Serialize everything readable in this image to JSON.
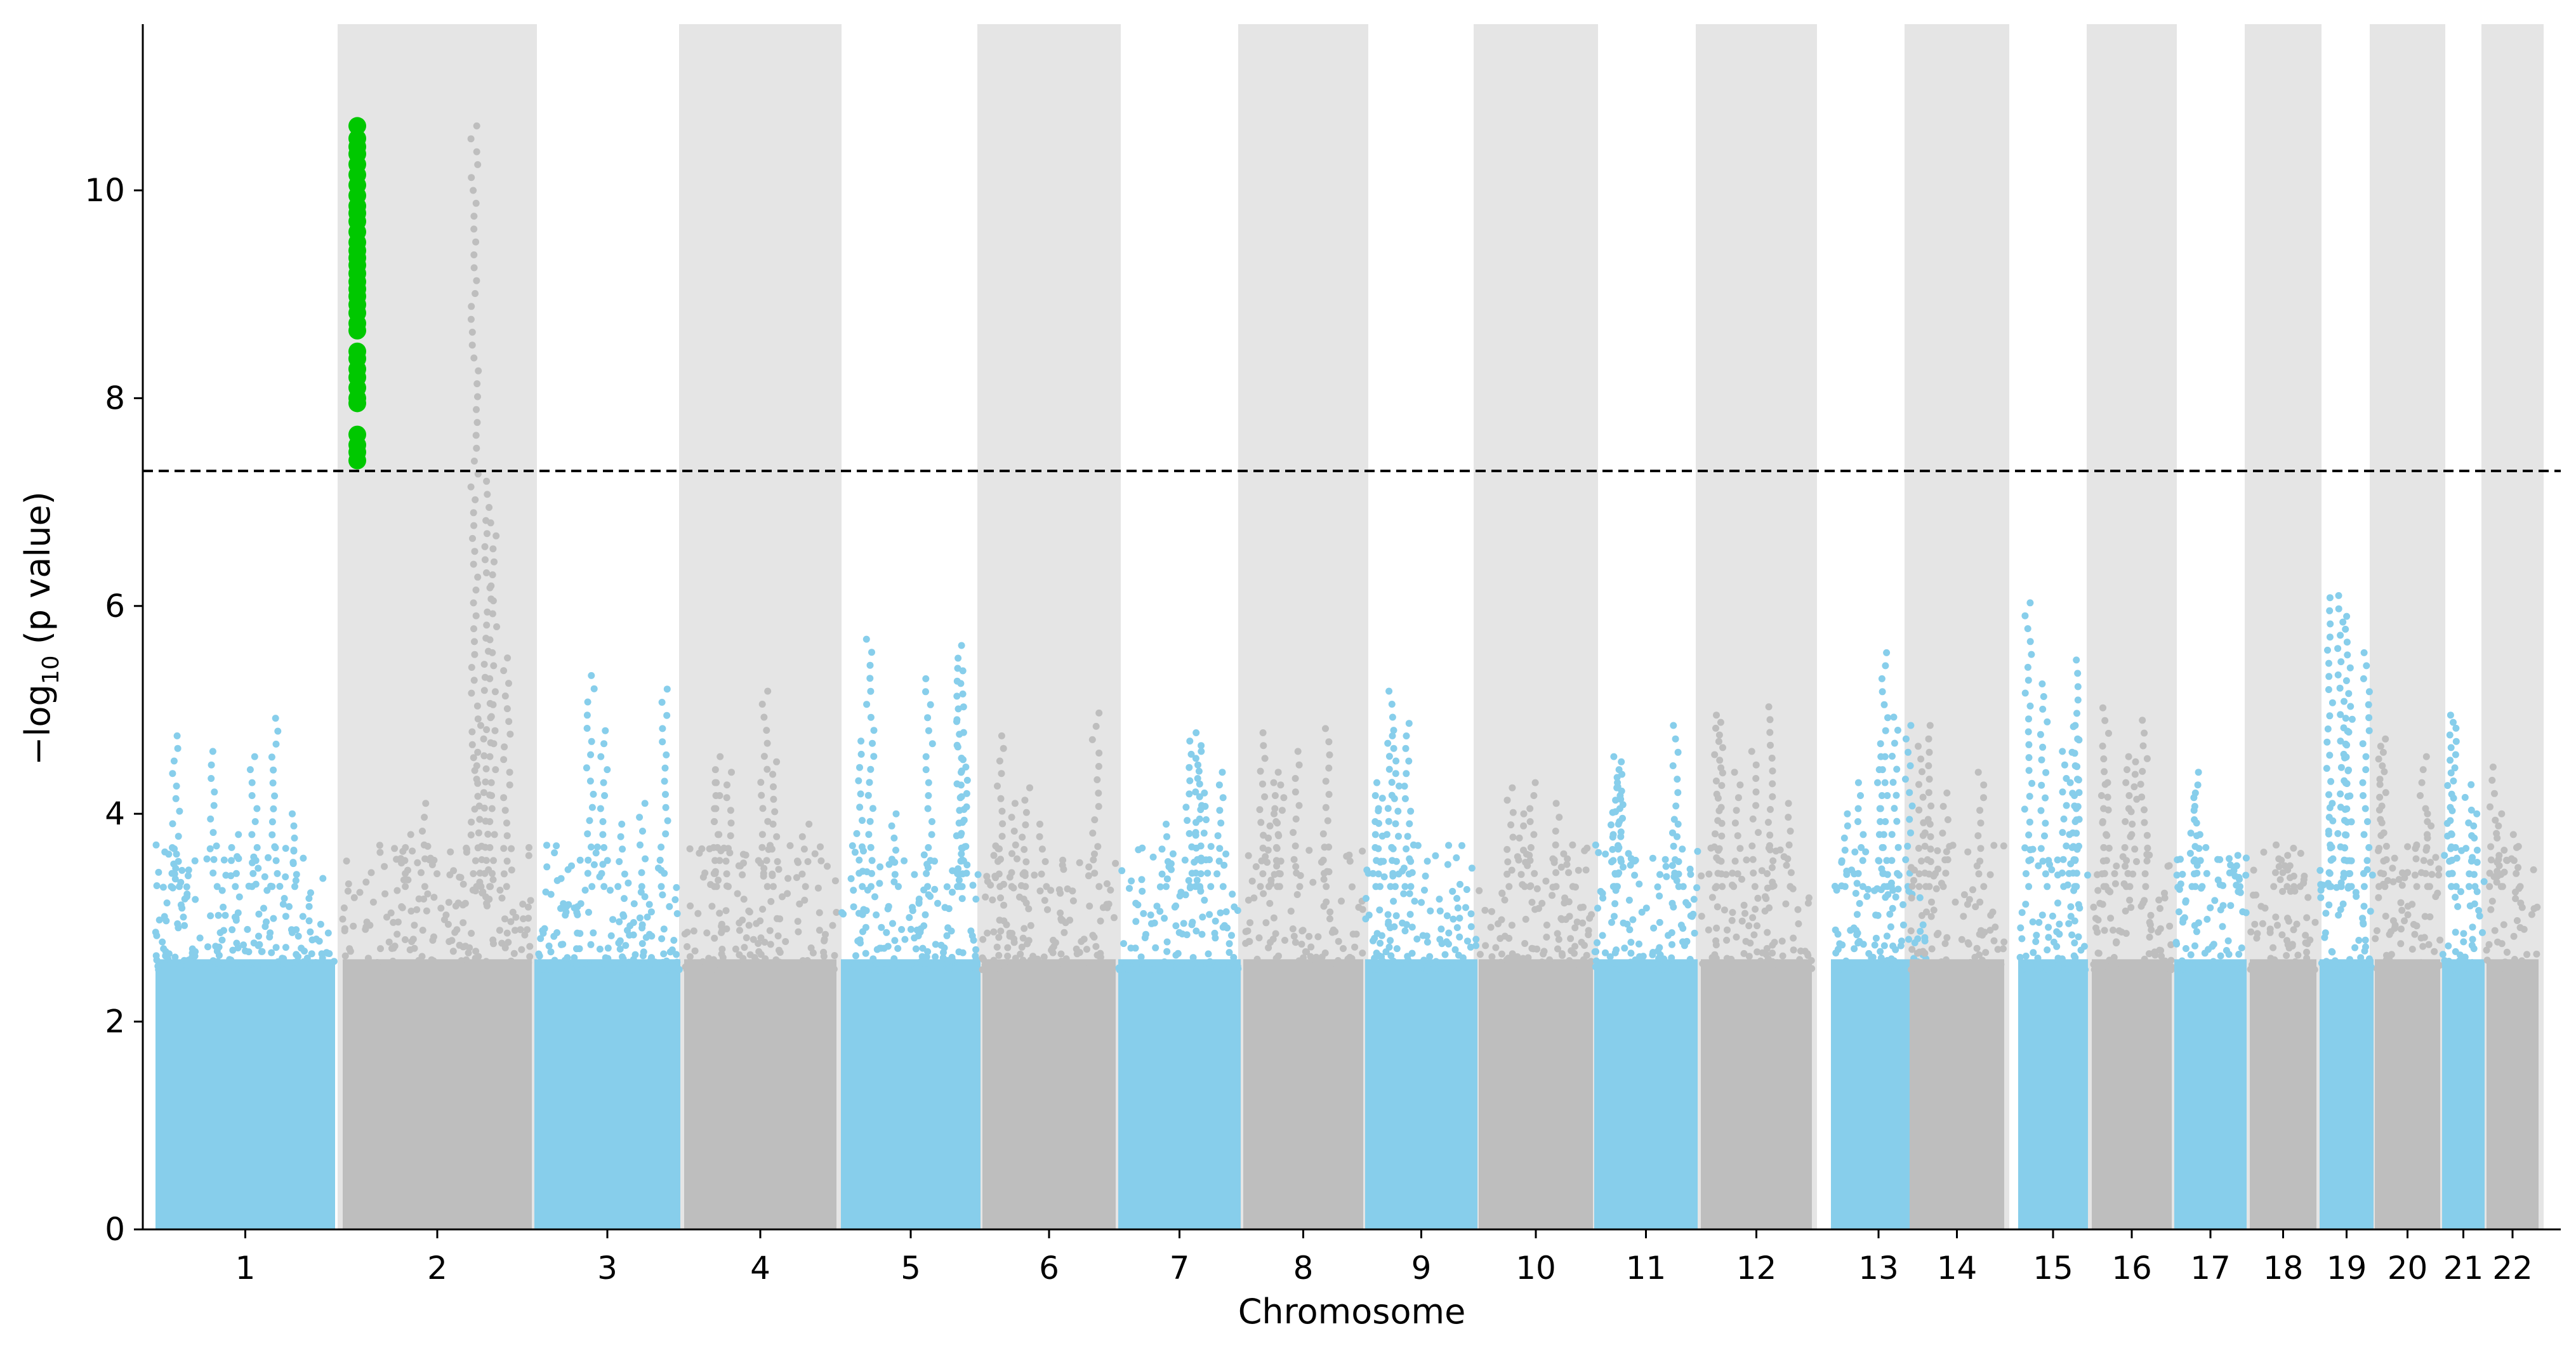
{
  "chart_data": {
    "type": "scatter",
    "subtype": "manhattan",
    "title": "",
    "xlabel": "Chromosome",
    "ylabel_prefix": "−log",
    "ylabel_sub": "10",
    "ylabel_suffix": " (p value)",
    "ylim": [
      0,
      11.6
    ],
    "yticks": [
      0,
      2,
      4,
      6,
      8,
      10
    ],
    "threshold": 7.3,
    "threshold_style": "dashed",
    "grid": false,
    "legend": "none",
    "colors": {
      "odd_chromosome": "#87ceeb",
      "even_chromosome": "#bebebe",
      "significant": "#00c800",
      "even_band": "#e5e5e5",
      "threshold_line": "#000000"
    },
    "chromosomes": [
      {
        "label": "1",
        "peaks": [
          4.92,
          4.75,
          4.6,
          4.55,
          4.0,
          3.8
        ]
      },
      {
        "label": "2",
        "peaks": [
          10.62,
          7.2,
          6.8,
          5.5,
          4.85,
          4.1,
          3.8
        ]
      },
      {
        "label": "3",
        "peaks": [
          5.33,
          5.2,
          4.8,
          4.1,
          3.9
        ]
      },
      {
        "label": "4",
        "peaks": [
          5.18,
          4.55,
          4.5,
          4.4,
          4.3,
          3.9
        ]
      },
      {
        "label": "5",
        "peaks": [
          5.68,
          5.62,
          5.4,
          5.3,
          4.7,
          4.45,
          4.0
        ]
      },
      {
        "label": "6",
        "peaks": [
          4.97,
          4.75,
          4.25,
          4.1,
          3.9
        ]
      },
      {
        "label": "7",
        "peaks": [
          4.78,
          4.7,
          4.6,
          4.4,
          4.2,
          3.9
        ]
      },
      {
        "label": "8",
        "peaks": [
          4.82,
          4.78,
          4.6,
          4.4,
          4.3,
          4.0
        ]
      },
      {
        "label": "9",
        "peaks": [
          5.18,
          4.87,
          4.75,
          4.3,
          4.15,
          3.7
        ]
      },
      {
        "label": "10",
        "peaks": [
          4.3,
          4.25,
          4.1,
          4.0,
          3.7
        ]
      },
      {
        "label": "11",
        "peaks": [
          4.85,
          4.55,
          4.5,
          4.35,
          4.25,
          3.9
        ]
      },
      {
        "label": "12",
        "peaks": [
          5.03,
          4.95,
          4.88,
          4.6,
          4.4,
          4.1
        ]
      },
      {
        "label": "13",
        "peaks": [
          5.55,
          4.93,
          4.85,
          4.55,
          4.3,
          4.0
        ]
      },
      {
        "label": "14",
        "peaks": [
          4.85,
          4.65,
          4.4,
          4.2,
          3.9
        ]
      },
      {
        "label": "15",
        "peaks": [
          6.03,
          5.48,
          5.25,
          4.85,
          4.6,
          4.3
        ]
      },
      {
        "label": "16",
        "peaks": [
          5.02,
          4.9,
          4.55,
          4.5,
          4.3
        ]
      },
      {
        "label": "17",
        "peaks": [
          4.4,
          4.2,
          3.8,
          3.6
        ]
      },
      {
        "label": "18",
        "peaks": [
          3.7,
          3.6,
          3.5,
          3.4
        ]
      },
      {
        "label": "19",
        "peaks": [
          6.1,
          6.08,
          5.9,
          5.55,
          4.92,
          4.1
        ]
      },
      {
        "label": "20",
        "peaks": [
          4.72,
          4.65,
          4.55,
          4.0,
          3.7
        ]
      },
      {
        "label": "21",
        "peaks": [
          4.95,
          4.88,
          4.28,
          4.0,
          3.8
        ]
      },
      {
        "label": "22",
        "peaks": [
          4.45,
          4.0,
          3.8,
          3.6
        ]
      }
    ],
    "significant_points": {
      "chromosome": "2",
      "y": [
        10.62,
        10.5,
        10.42,
        10.35,
        10.25,
        10.15,
        10.05,
        9.95,
        9.85,
        9.78,
        9.7,
        9.6,
        9.5,
        9.42,
        9.35,
        9.28,
        9.2,
        9.12,
        9.05,
        8.98,
        8.9,
        8.82,
        8.72,
        8.65,
        8.45,
        8.38,
        8.28,
        8.2,
        8.1,
        8.0,
        7.95,
        7.65,
        7.55,
        7.48,
        7.4
      ]
    }
  }
}
